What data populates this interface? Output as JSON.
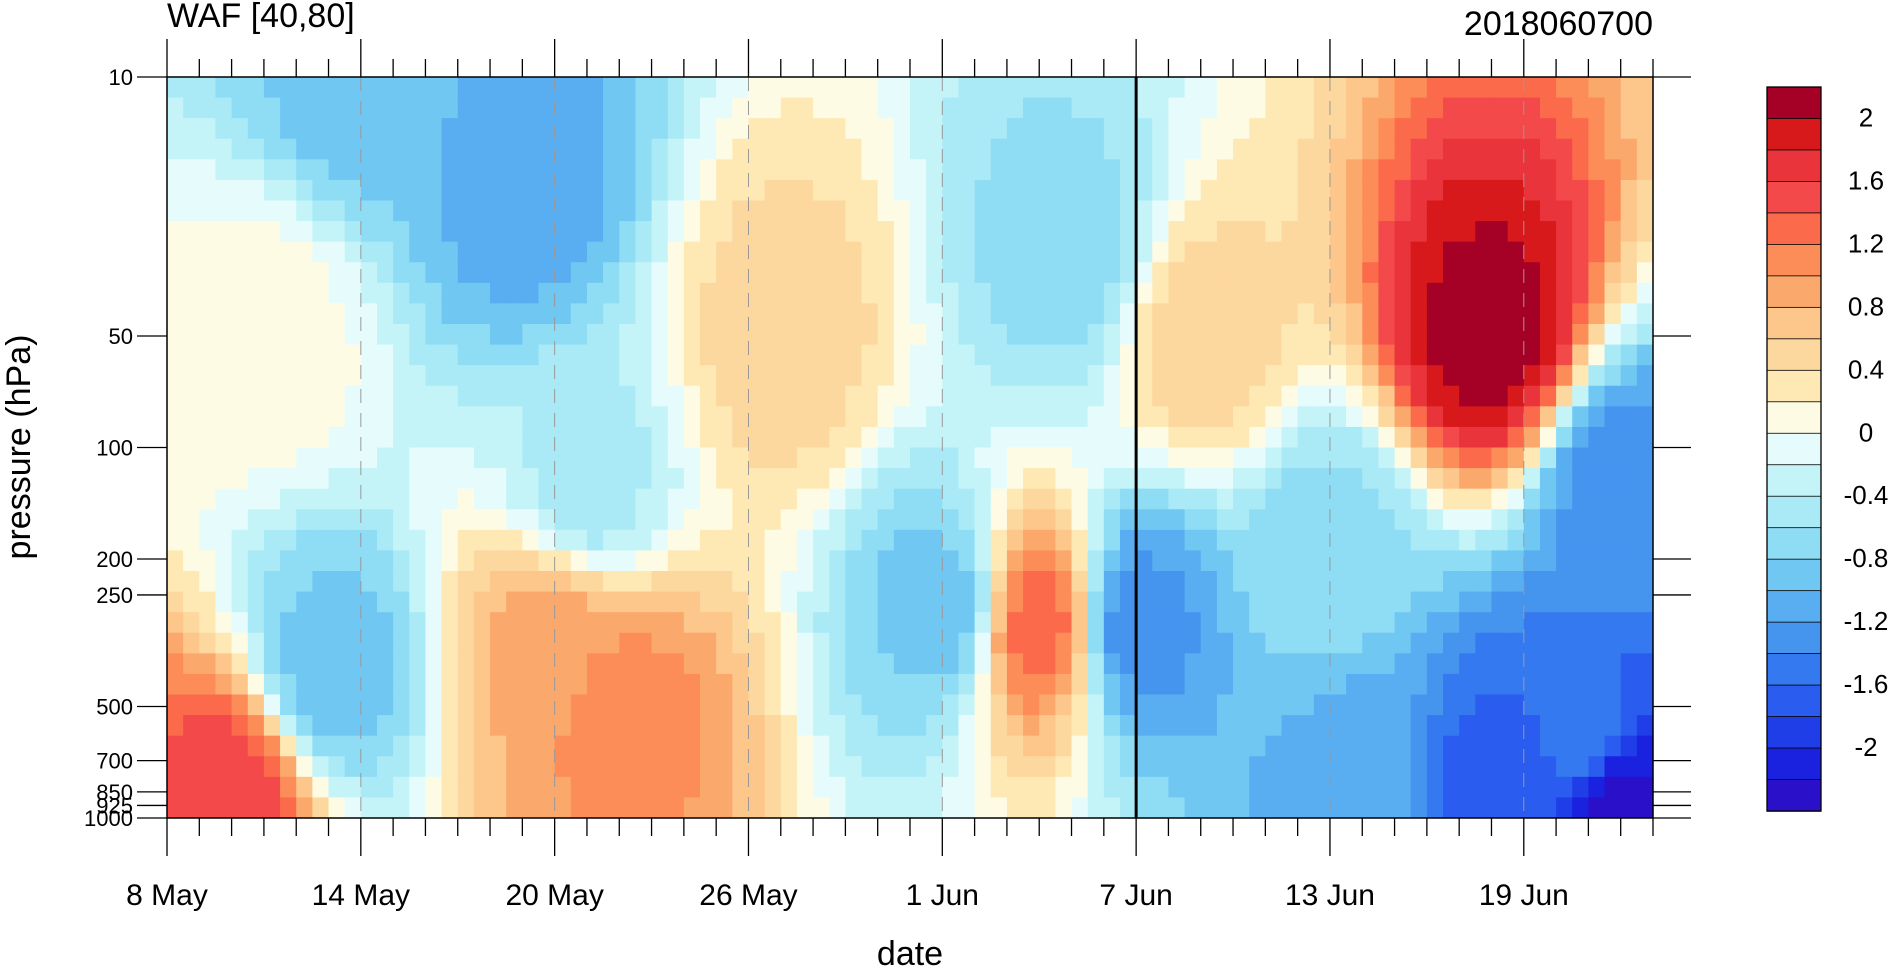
{
  "chart_data": {
    "type": "heatmap",
    "title": "WAF [40,80]",
    "subtitle": "2018060700",
    "xlabel": "date",
    "ylabel": "pressure (hPa)",
    "x_ticks": [
      "8 May",
      "14 May",
      "20 May",
      "26 May",
      "1 Jun",
      "7 Jun",
      "13 Jun",
      "19 Jun"
    ],
    "y_ticks": [
      "10",
      "50",
      "100",
      "200",
      "250",
      "500",
      "700",
      "850",
      "925",
      "1000"
    ],
    "y_tick_values": [
      10,
      50,
      100,
      200,
      250,
      500,
      700,
      850,
      925,
      1000
    ],
    "ylim": [
      1000,
      10
    ],
    "xlim_days": [
      0,
      46
    ],
    "y_scale": "log",
    "analysis_date": "7 Jun",
    "colorbar": {
      "placement": "right",
      "labels": [
        "2",
        "1.6",
        "1.2",
        "0.8",
        "0.4",
        "0",
        "-0.4",
        "-0.8",
        "-1.2",
        "-1.6",
        "-2"
      ],
      "levels_top_to_bottom": [
        "2.2+",
        "2.0",
        "1.8",
        "1.6",
        "1.4",
        "1.2",
        "1.0",
        "0.8",
        "0.6",
        "0.4",
        "0.2",
        "0",
        "-0.2",
        "-0.4",
        "-0.6",
        "-0.8",
        "-1.0",
        "-1.2",
        "-1.4",
        "-1.6",
        "-1.8",
        "-2.0",
        "-2.2"
      ],
      "colors": [
        "#a50026",
        "#d7191c",
        "#e8343a",
        "#f4494a",
        "#fb6a4a",
        "#fc8d59",
        "#fba86c",
        "#fdc68a",
        "#fcd79e",
        "#fee9b5",
        "#fefbe4",
        "#e6fcfc",
        "#c4f4f8",
        "#aaeaf6",
        "#8fdcf5",
        "#70c8f2",
        "#58aef0",
        "#4595ef",
        "#3579f0",
        "#2a5cf0",
        "#1f3ee8",
        "#1a22e0",
        "#2a10c8"
      ]
    },
    "features": [
      {
        "day": 41,
        "p": 50,
        "value": 2.2
      },
      {
        "day": 2,
        "p": 850,
        "value": 1.6
      },
      {
        "day": 27,
        "p": 300,
        "value": 1.4
      },
      {
        "day": 14,
        "p": 500,
        "value": 1.2
      },
      {
        "day": 12,
        "p": 330,
        "value": 1.0
      },
      {
        "day": 19,
        "p": 50,
        "value": 0.6
      },
      {
        "day": 32,
        "p": 50,
        "value": 0.6
      },
      {
        "day": 3,
        "p": 50,
        "value": 0.2
      },
      {
        "day": 6,
        "p": 10,
        "value": -0.8
      },
      {
        "day": 11,
        "p": 20,
        "value": -1.0
      },
      {
        "day": 28,
        "p": 30,
        "value": -0.6
      },
      {
        "day": 30,
        "p": 300,
        "value": -1.2
      },
      {
        "day": 24,
        "p": 270,
        "value": -0.8
      },
      {
        "day": 5,
        "p": 400,
        "value": -0.8
      },
      {
        "day": 37,
        "p": 800,
        "value": -1.0
      },
      {
        "day": 45,
        "p": 130,
        "value": -1.2
      },
      {
        "day": 45,
        "p": 900,
        "value": -2.2
      },
      {
        "day": 41,
        "p": 870,
        "value": -1.6
      },
      {
        "day": 44,
        "p": 600,
        "value": -1.4
      },
      {
        "day": 36,
        "p": 200,
        "value": -0.6
      },
      {
        "day": 13,
        "p": 130,
        "value": -0.4
      }
    ]
  }
}
